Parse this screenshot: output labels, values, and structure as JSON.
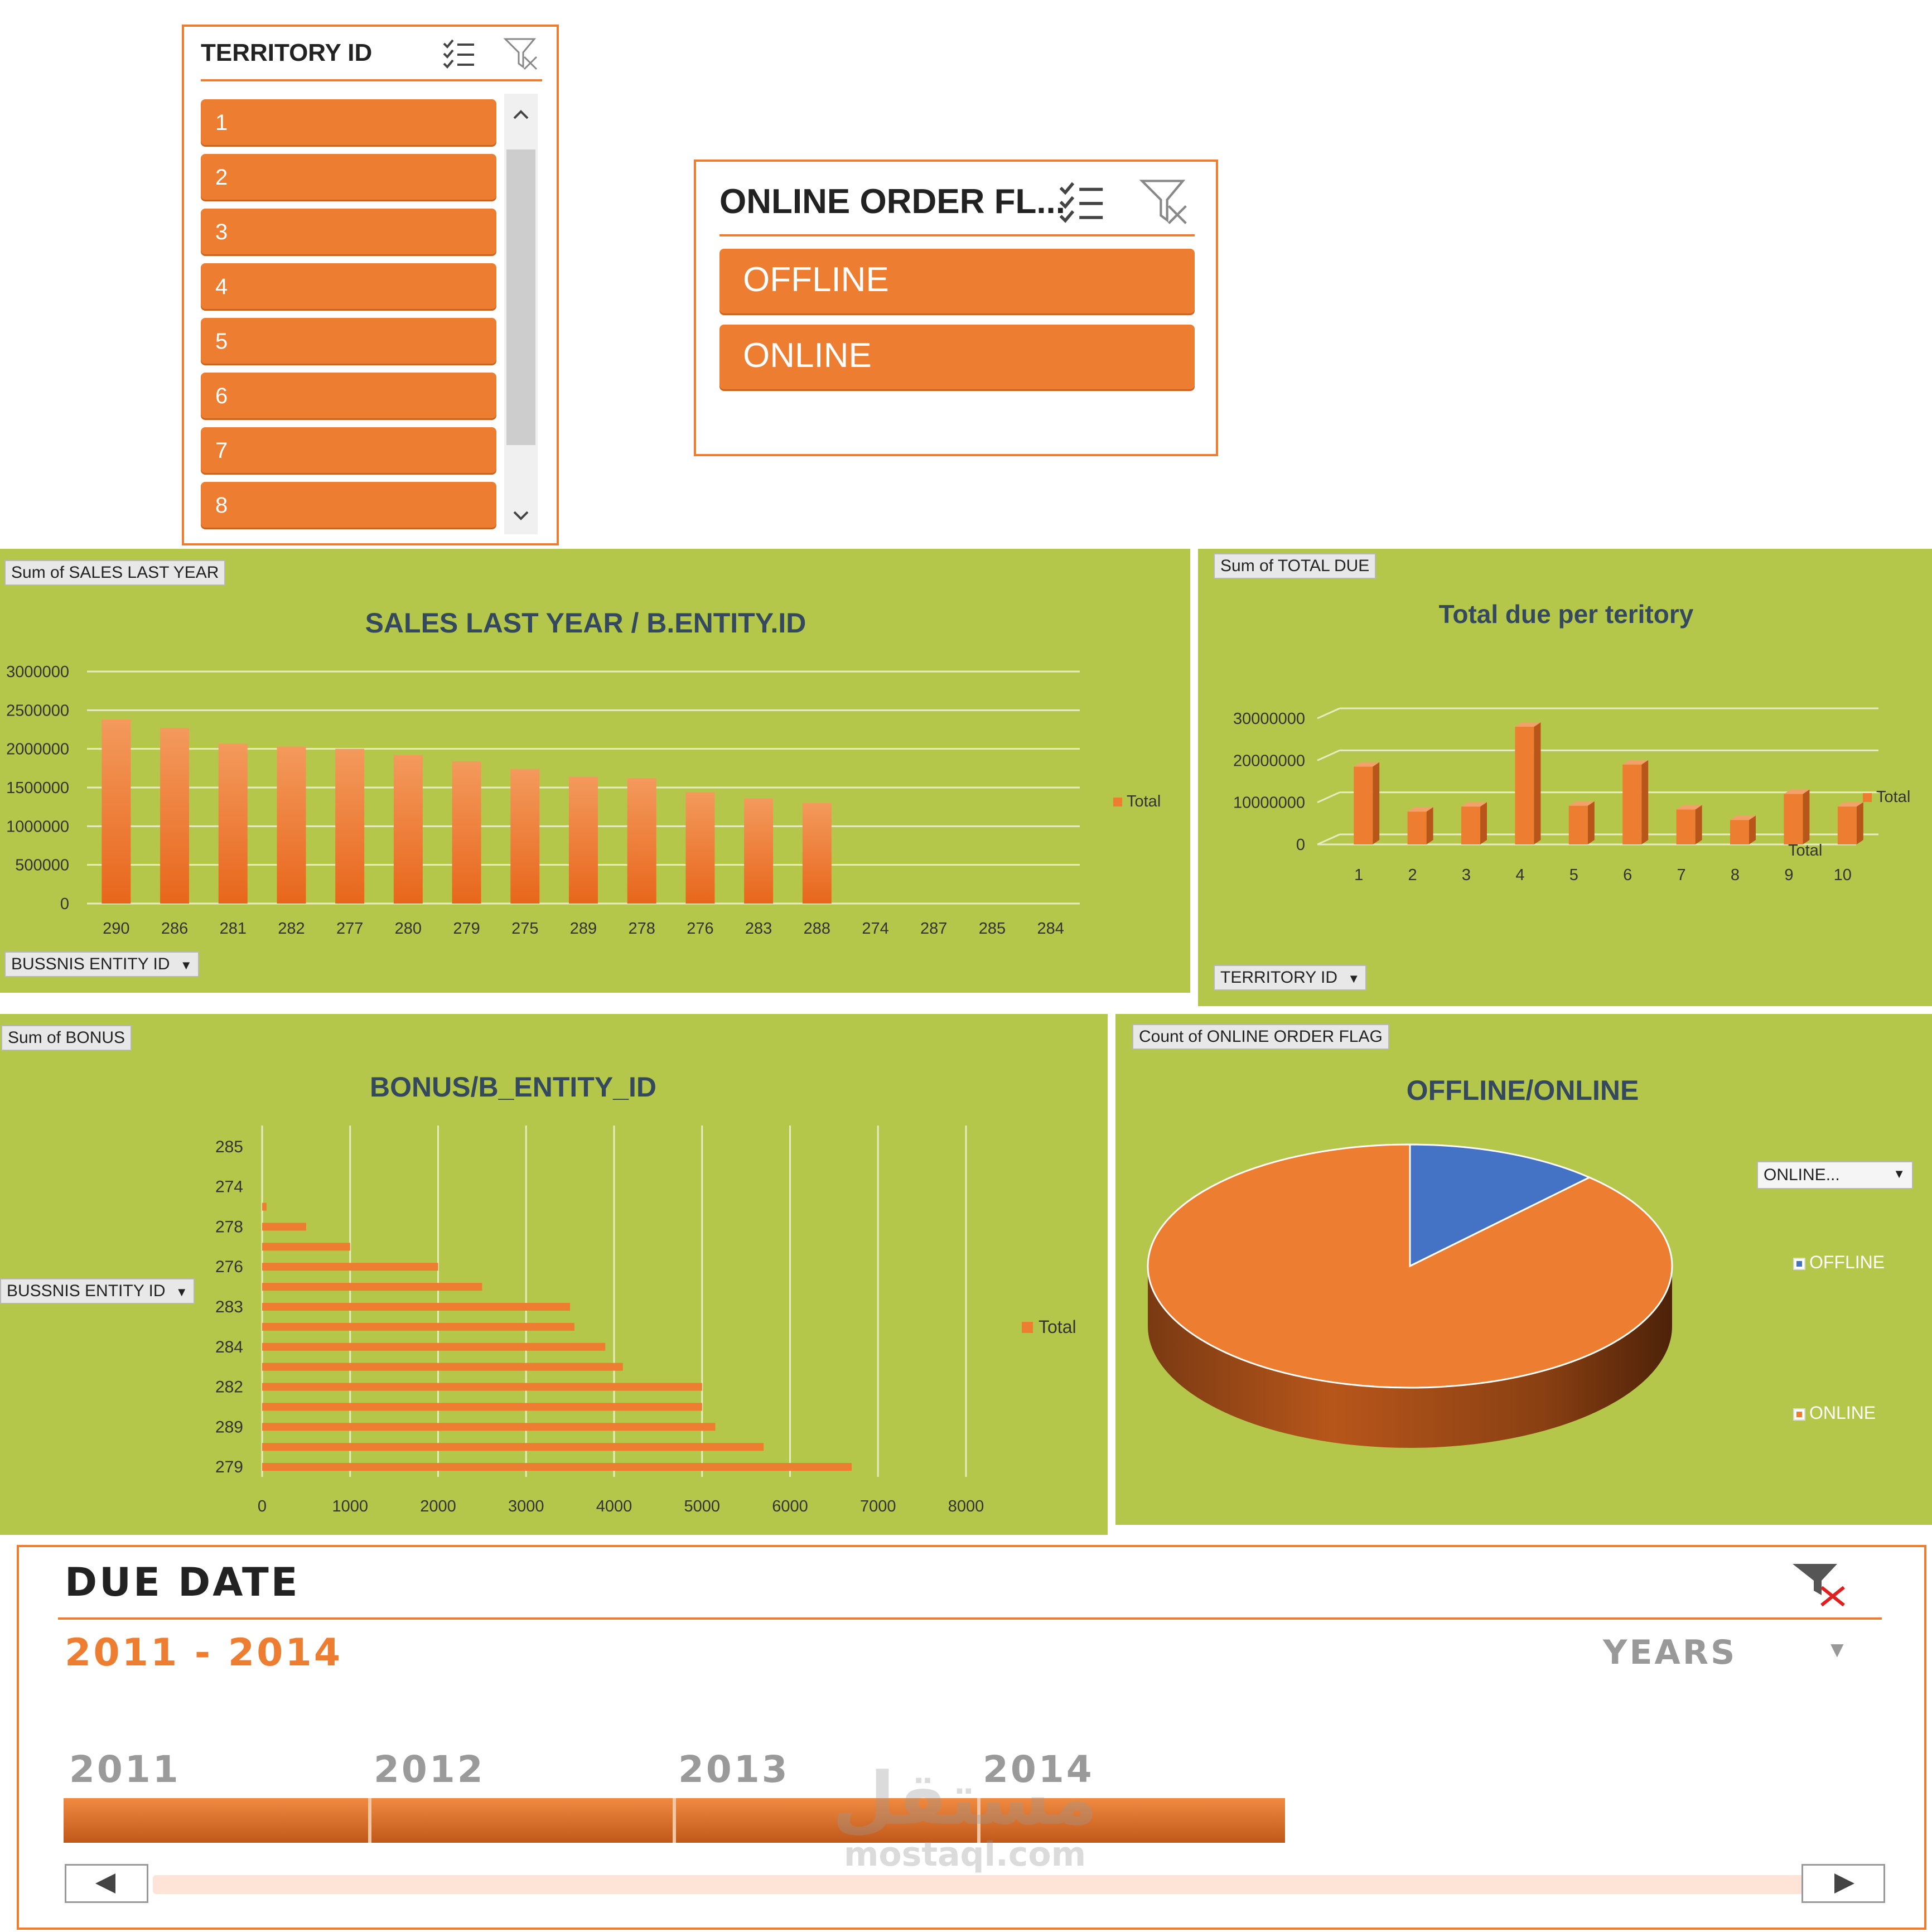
{
  "territory_slicer": {
    "title": "TERRITORY ID",
    "items": [
      "1",
      "2",
      "3",
      "4",
      "5",
      "6",
      "7",
      "8"
    ],
    "multiselect_icon": "multiselect-icon",
    "clear_filter_icon": "clear-filter-icon",
    "scroll_up_icon": "chevron-up-icon",
    "scroll_down_icon": "chevron-down-icon"
  },
  "online_slicer": {
    "title": "ONLINE ORDER FL...",
    "items": [
      "OFFLINE",
      "ONLINE"
    ]
  },
  "colors": {
    "accent": "#ED7D31",
    "panel_bg": "#B5C74A",
    "pie_offline": "#4472C4",
    "pie_online": "#ED7D31",
    "title_text": "#34495E"
  },
  "sales_chart": {
    "field_value": "Sum of SALES LAST YEAR",
    "field_axis": "BUSSNIS ENTITY ID",
    "legend": "Total"
  },
  "due_chart": {
    "field_value": "Sum of TOTAL DUE",
    "field_axis": "TERRITORY ID",
    "legend": "Total",
    "depth_label": "Total"
  },
  "bonus_chart": {
    "field_value": "Sum of BONUS",
    "field_axis": "BUSSNIS ENTITY ID",
    "legend": "Total"
  },
  "pie_chart_panel": {
    "field_value": "Count of ONLINE ORDER FLAG",
    "filter_dropdown": "ONLINE..."
  },
  "timeline": {
    "title": "DUE DATE",
    "range": "2011 - 2014",
    "level": "YEARS",
    "years": [
      "2011",
      "2012",
      "2013",
      "2014"
    ],
    "clear_filter_icon": "clear-filter-icon",
    "scroll_left_icon": "arrow-left-icon",
    "scroll_right_icon": "arrow-right-icon"
  },
  "watermark": {
    "arabic": "مستقل",
    "latin": "mostaql.com"
  },
  "chart_data": [
    {
      "type": "bar",
      "title": "SALES LAST YEAR / B.ENTITY.ID",
      "categories": [
        "290",
        "286",
        "281",
        "282",
        "277",
        "280",
        "279",
        "275",
        "289",
        "278",
        "276",
        "283",
        "288",
        "274",
        "287",
        "285",
        "284"
      ],
      "series": [
        {
          "name": "Total",
          "values": [
            2380000,
            2270000,
            2070000,
            2030000,
            2000000,
            1920000,
            1840000,
            1740000,
            1640000,
            1620000,
            1440000,
            1360000,
            1300000,
            0,
            0,
            0,
            0
          ]
        }
      ],
      "ylim": [
        0,
        3000000
      ],
      "yticks": [
        "0",
        "500000",
        "1000000",
        "1500000",
        "2000000",
        "2500000",
        "3000000"
      ],
      "grid": true,
      "legend": "right"
    },
    {
      "type": "bar",
      "title": "Total due per teritory",
      "categories": [
        "1",
        "2",
        "3",
        "4",
        "5",
        "6",
        "7",
        "8",
        "9",
        "10"
      ],
      "series": [
        {
          "name": "Total",
          "values": [
            18500000,
            7800000,
            9000000,
            28000000,
            9200000,
            19000000,
            8300000,
            5800000,
            12000000,
            9000000
          ]
        }
      ],
      "ylim": [
        0,
        30000000
      ],
      "yticks": [
        "0",
        "10000000",
        "20000000",
        "30000000"
      ],
      "grid": true,
      "legend": "right"
    },
    {
      "type": "bar",
      "title": "BONUS/B_ENTITY_ID",
      "orientation": "horizontal",
      "categories": [
        "279",
        "",
        "289",
        "",
        "282",
        "",
        "284",
        "",
        "283",
        "",
        "276",
        "",
        "278",
        "",
        "274",
        "",
        "285"
      ],
      "series": [
        {
          "name": "Total",
          "values": [
            6700,
            5700,
            5150,
            5000,
            5000,
            4100,
            3900,
            3550,
            3500,
            2500,
            2000,
            1000,
            500,
            50,
            0,
            0,
            0
          ]
        }
      ],
      "xlim": [
        0,
        8000
      ],
      "xticks": [
        "0",
        "1000",
        "2000",
        "3000",
        "4000",
        "5000",
        "6000",
        "7000",
        "8000"
      ],
      "grid": true,
      "legend": "right"
    },
    {
      "type": "pie",
      "title": "OFFLINE/ONLINE",
      "categories": [
        "OFFLINE",
        "ONLINE"
      ],
      "values": [
        12,
        88
      ],
      "legend": "right"
    }
  ]
}
